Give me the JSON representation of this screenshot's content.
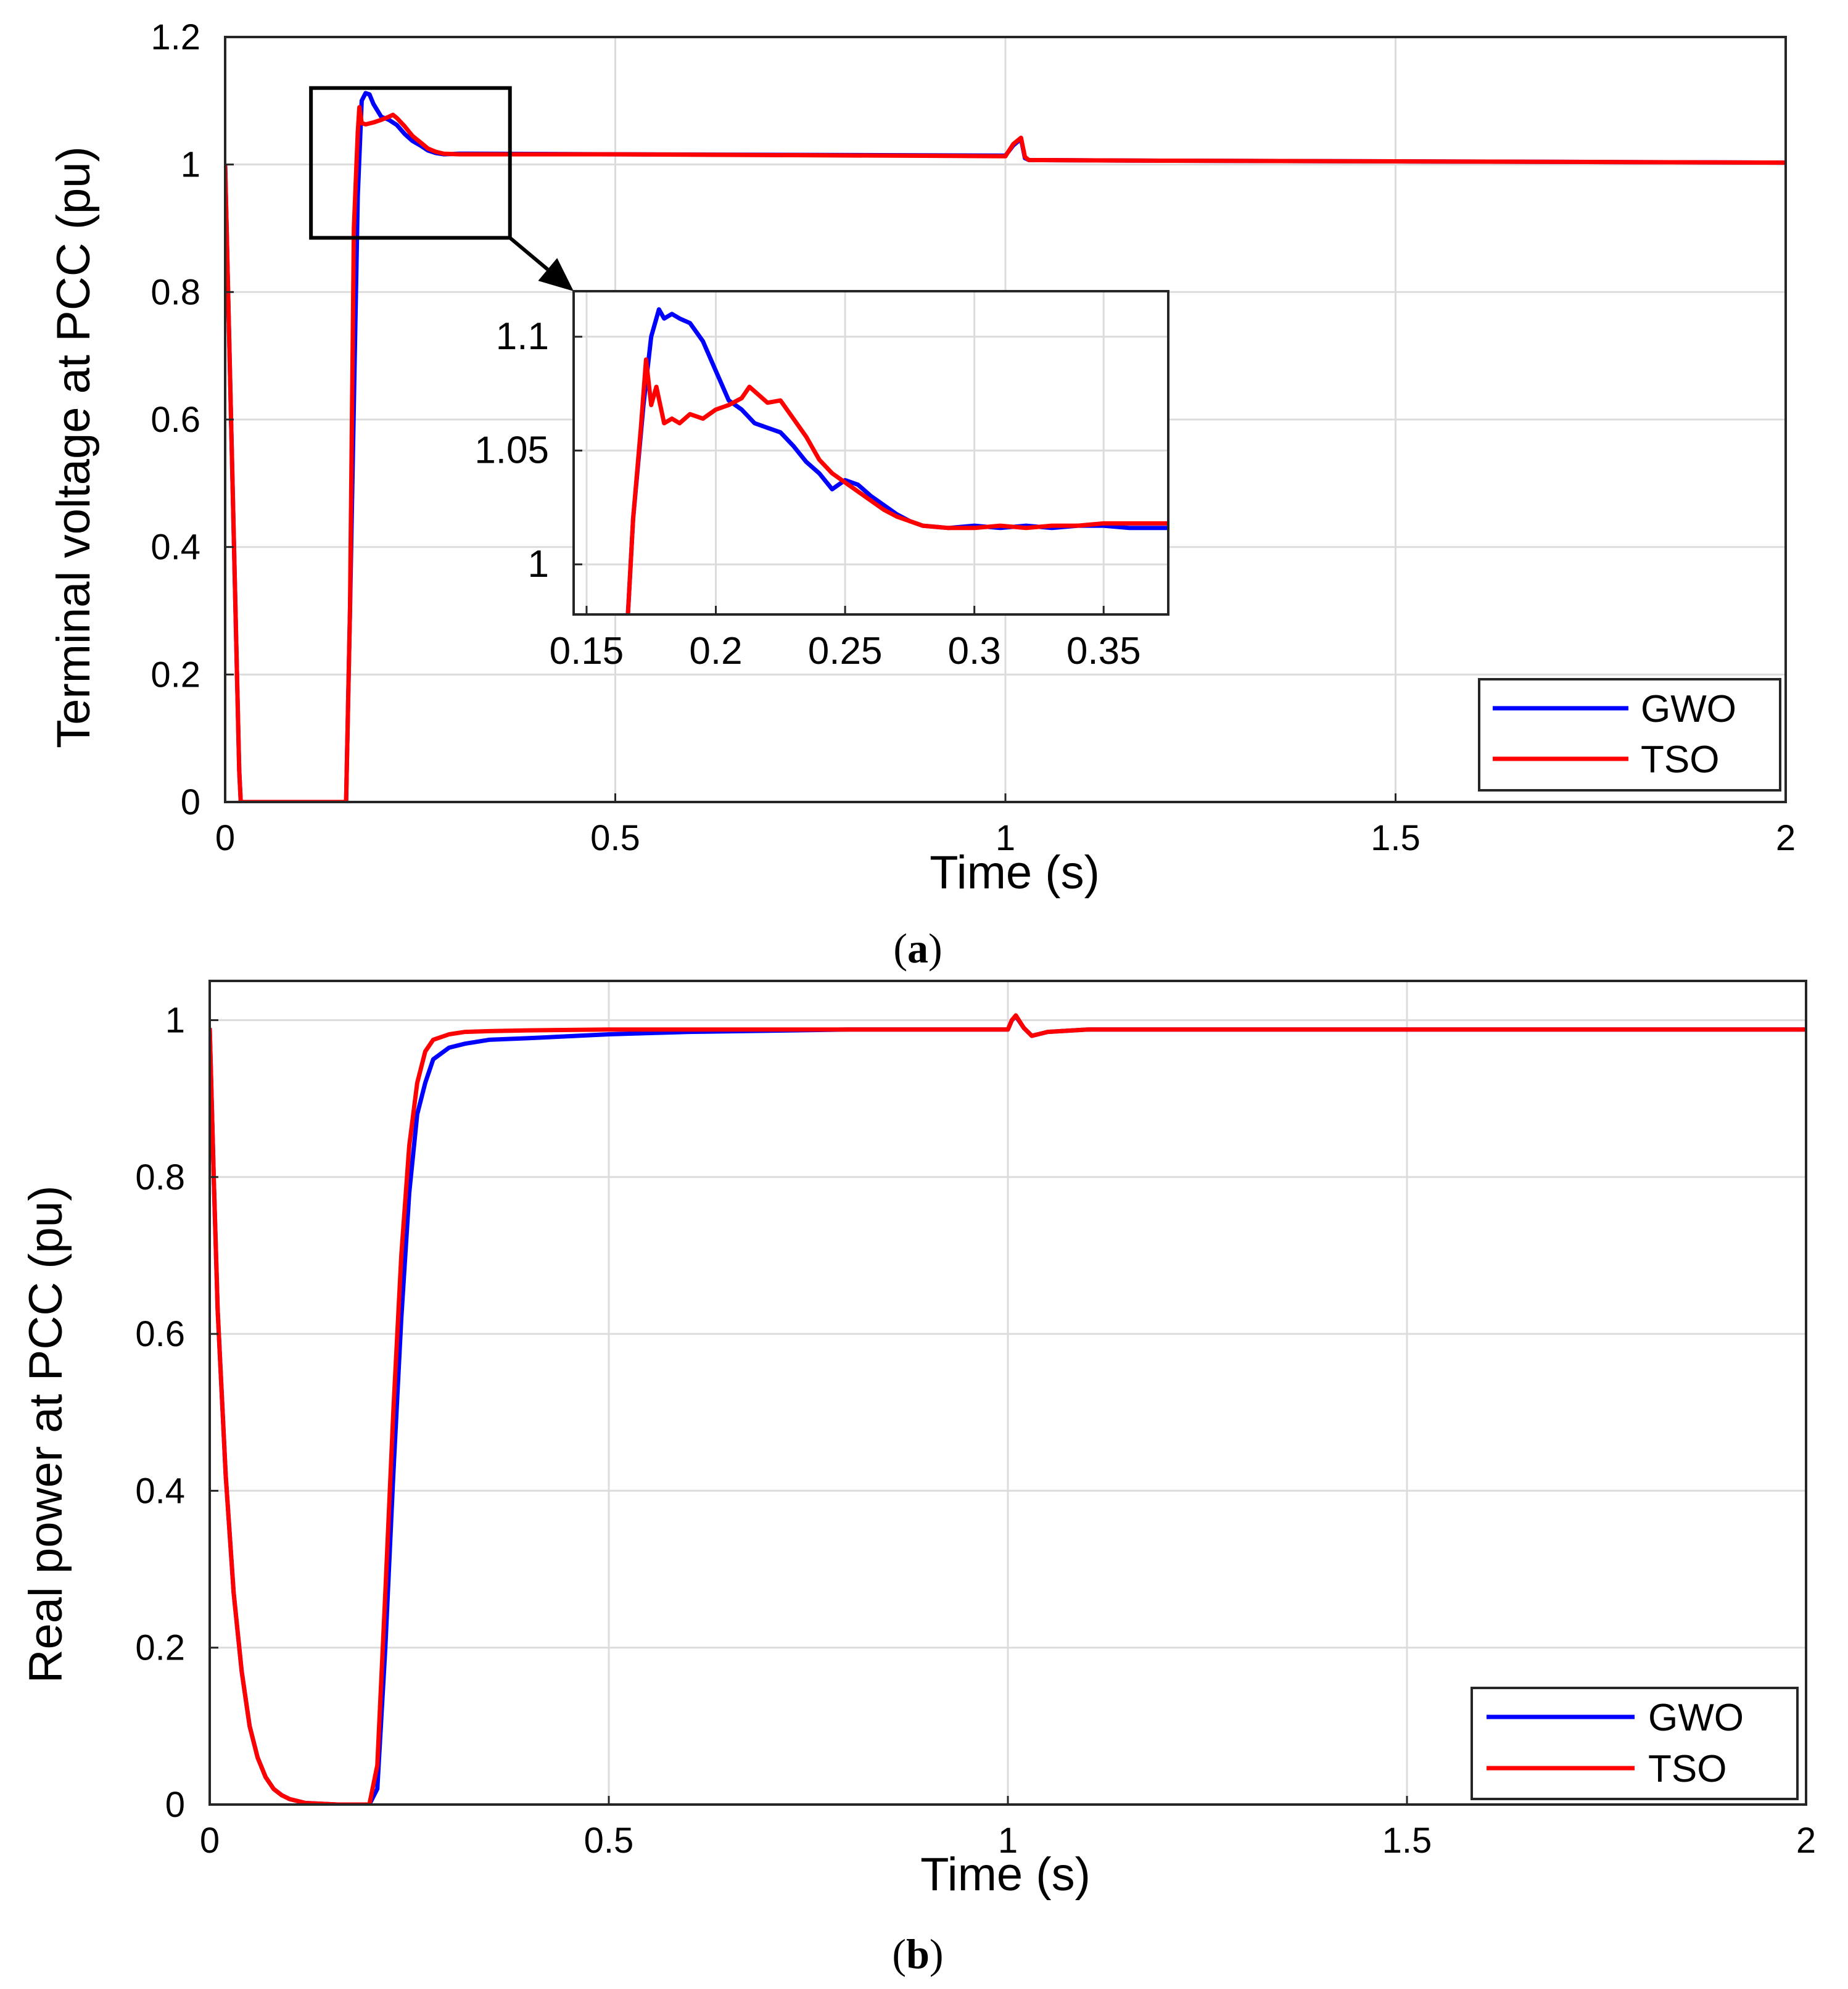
{
  "chart_data": [
    {
      "type": "line",
      "panel": "(a)",
      "caption_letter": "a",
      "xlabel": "Time (s)",
      "ylabel": "Terminal voltage at PCC (pu)",
      "xlim": [
        0,
        2
      ],
      "ylim": [
        0,
        1.2
      ],
      "xticks": [
        "0",
        "0.5",
        "1",
        "1.5",
        "2"
      ],
      "yticks": [
        "0",
        "0.2",
        "0.4",
        "0.6",
        "0.8",
        "1",
        "1.2"
      ],
      "grid": true,
      "legend": {
        "position": "bottom-right",
        "entries": [
          "GWO",
          "TSO"
        ]
      },
      "series": [
        {
          "name": "GWO",
          "color": "#0000ff",
          "x": [
            0,
            0.018,
            0.02,
            0.155,
            0.16,
            0.17,
            0.175,
            0.18,
            0.185,
            0.19,
            0.2,
            0.21,
            0.22,
            0.23,
            0.24,
            0.25,
            0.26,
            0.27,
            0.28,
            0.3,
            0.5,
            1.0,
            1.01,
            1.02,
            1.025,
            1.03,
            1.2,
            1.5,
            2.0
          ],
          "values": [
            1,
            0.05,
            0,
            0,
            0.3,
            0.95,
            1.1,
            1.112,
            1.11,
            1.095,
            1.075,
            1.07,
            1.062,
            1.048,
            1.037,
            1.03,
            1.022,
            1.018,
            1.016,
            1.017,
            1.016,
            1.014,
            1.03,
            1.04,
            1.01,
            1.007,
            1.006,
            1.005,
            1.003
          ]
        },
        {
          "name": "TSO",
          "color": "#ff0000",
          "x": [
            0,
            0.018,
            0.02,
            0.155,
            0.16,
            0.165,
            0.17,
            0.172,
            0.175,
            0.18,
            0.19,
            0.2,
            0.21,
            0.215,
            0.22,
            0.23,
            0.24,
            0.25,
            0.26,
            0.27,
            0.28,
            0.3,
            0.5,
            1.0,
            1.01,
            1.02,
            1.025,
            1.03,
            1.2,
            1.5,
            2.0
          ],
          "values": [
            1,
            0.05,
            0,
            0,
            0.3,
            0.9,
            1.05,
            1.09,
            1.065,
            1.063,
            1.066,
            1.07,
            1.075,
            1.078,
            1.073,
            1.06,
            1.045,
            1.035,
            1.025,
            1.02,
            1.017,
            1.016,
            1.016,
            1.013,
            1.032,
            1.042,
            1.012,
            1.007,
            1.006,
            1.005,
            1.003
          ]
        }
      ],
      "inset": {
        "xlim": [
          0.145,
          0.375
        ],
        "ylim": [
          0.978,
          1.12
        ],
        "xticks": [
          "0.15",
          "0.2",
          "0.25",
          "0.3",
          "0.35"
        ],
        "yticks": [
          "1",
          "1.05",
          "1.1"
        ],
        "zoom_box": {
          "xlim": [
            0.11,
            0.365
          ],
          "ylim": [
            0.885,
            1.12
          ]
        },
        "series": [
          {
            "name": "GWO",
            "color": "#0000ff",
            "x": [
              0.166,
              0.168,
              0.172,
              0.175,
              0.178,
              0.18,
              0.183,
              0.186,
              0.19,
              0.195,
              0.2,
              0.205,
              0.21,
              0.215,
              0.22,
              0.225,
              0.23,
              0.235,
              0.24,
              0.245,
              0.25,
              0.255,
              0.26,
              0.265,
              0.27,
              0.275,
              0.28,
              0.29,
              0.3,
              0.31,
              0.32,
              0.33,
              0.34,
              0.35,
              0.36,
              0.375
            ],
            "values": [
              0.978,
              1.02,
              1.07,
              1.1,
              1.112,
              1.108,
              1.11,
              1.108,
              1.106,
              1.098,
              1.085,
              1.072,
              1.068,
              1.062,
              1.06,
              1.058,
              1.052,
              1.045,
              1.04,
              1.033,
              1.037,
              1.035,
              1.03,
              1.026,
              1.022,
              1.019,
              1.017,
              1.016,
              1.017,
              1.016,
              1.017,
              1.016,
              1.017,
              1.017,
              1.016,
              1.016
            ]
          },
          {
            "name": "TSO",
            "color": "#ff0000",
            "x": [
              0.166,
              0.168,
              0.171,
              0.173,
              0.175,
              0.177,
              0.18,
              0.183,
              0.186,
              0.19,
              0.195,
              0.2,
              0.205,
              0.21,
              0.213,
              0.217,
              0.22,
              0.225,
              0.23,
              0.235,
              0.24,
              0.245,
              0.25,
              0.255,
              0.26,
              0.265,
              0.27,
              0.275,
              0.28,
              0.29,
              0.3,
              0.31,
              0.32,
              0.33,
              0.34,
              0.35,
              0.36,
              0.375
            ],
            "values": [
              0.978,
              1.02,
              1.06,
              1.09,
              1.07,
              1.078,
              1.062,
              1.064,
              1.062,
              1.066,
              1.064,
              1.068,
              1.07,
              1.073,
              1.078,
              1.074,
              1.071,
              1.072,
              1.064,
              1.056,
              1.046,
              1.04,
              1.036,
              1.032,
              1.028,
              1.024,
              1.021,
              1.019,
              1.017,
              1.016,
              1.016,
              1.017,
              1.016,
              1.017,
              1.017,
              1.018,
              1.018,
              1.018
            ]
          }
        ]
      }
    },
    {
      "type": "line",
      "panel": "(b)",
      "caption_letter": "b",
      "xlabel": "Time (s)",
      "ylabel": "Real power at PCC (pu)",
      "xlim": [
        0,
        2
      ],
      "ylim": [
        0,
        1.05
      ],
      "xticks": [
        "0",
        "0.5",
        "1",
        "1.5",
        "2"
      ],
      "yticks": [
        "0",
        "0.2",
        "0.4",
        "0.6",
        "0.8",
        "1"
      ],
      "grid": true,
      "legend": {
        "position": "bottom-right",
        "entries": [
          "GWO",
          "TSO"
        ]
      },
      "series": [
        {
          "name": "GWO",
          "color": "#0000ff",
          "x": [
            0,
            0.005,
            0.01,
            0.02,
            0.03,
            0.04,
            0.05,
            0.06,
            0.07,
            0.08,
            0.09,
            0.1,
            0.12,
            0.14,
            0.16,
            0.2,
            0.21,
            0.22,
            0.23,
            0.24,
            0.25,
            0.26,
            0.27,
            0.28,
            0.3,
            0.32,
            0.35,
            0.4,
            0.5,
            0.6,
            0.8,
            1.0,
            1.005,
            1.01,
            1.02,
            1.03,
            1.05,
            1.1,
            1.5,
            2.0
          ],
          "values": [
            0.99,
            0.8,
            0.63,
            0.42,
            0.27,
            0.17,
            0.1,
            0.06,
            0.035,
            0.02,
            0.012,
            0.007,
            0.002,
            0.001,
            0,
            0,
            0.02,
            0.2,
            0.42,
            0.62,
            0.78,
            0.88,
            0.92,
            0.95,
            0.965,
            0.97,
            0.975,
            0.977,
            0.982,
            0.985,
            0.988,
            0.988,
            1.0,
            1.005,
            0.99,
            0.98,
            0.985,
            0.988,
            0.988,
            0.988
          ]
        },
        {
          "name": "TSO",
          "color": "#ff0000",
          "x": [
            0,
            0.005,
            0.01,
            0.02,
            0.03,
            0.04,
            0.05,
            0.06,
            0.07,
            0.08,
            0.09,
            0.1,
            0.12,
            0.14,
            0.16,
            0.2,
            0.21,
            0.22,
            0.23,
            0.24,
            0.25,
            0.26,
            0.27,
            0.28,
            0.3,
            0.32,
            0.35,
            0.4,
            0.5,
            0.6,
            0.8,
            1.0,
            1.005,
            1.01,
            1.02,
            1.03,
            1.05,
            1.1,
            1.5,
            2.0
          ],
          "values": [
            0.99,
            0.8,
            0.63,
            0.42,
            0.27,
            0.17,
            0.1,
            0.06,
            0.035,
            0.02,
            0.012,
            0.007,
            0.002,
            0.001,
            0,
            0,
            0.05,
            0.27,
            0.5,
            0.7,
            0.84,
            0.92,
            0.96,
            0.975,
            0.982,
            0.985,
            0.986,
            0.987,
            0.988,
            0.988,
            0.988,
            0.988,
            1.0,
            1.006,
            0.99,
            0.98,
            0.985,
            0.988,
            0.988,
            0.988
          ]
        }
      ]
    }
  ]
}
